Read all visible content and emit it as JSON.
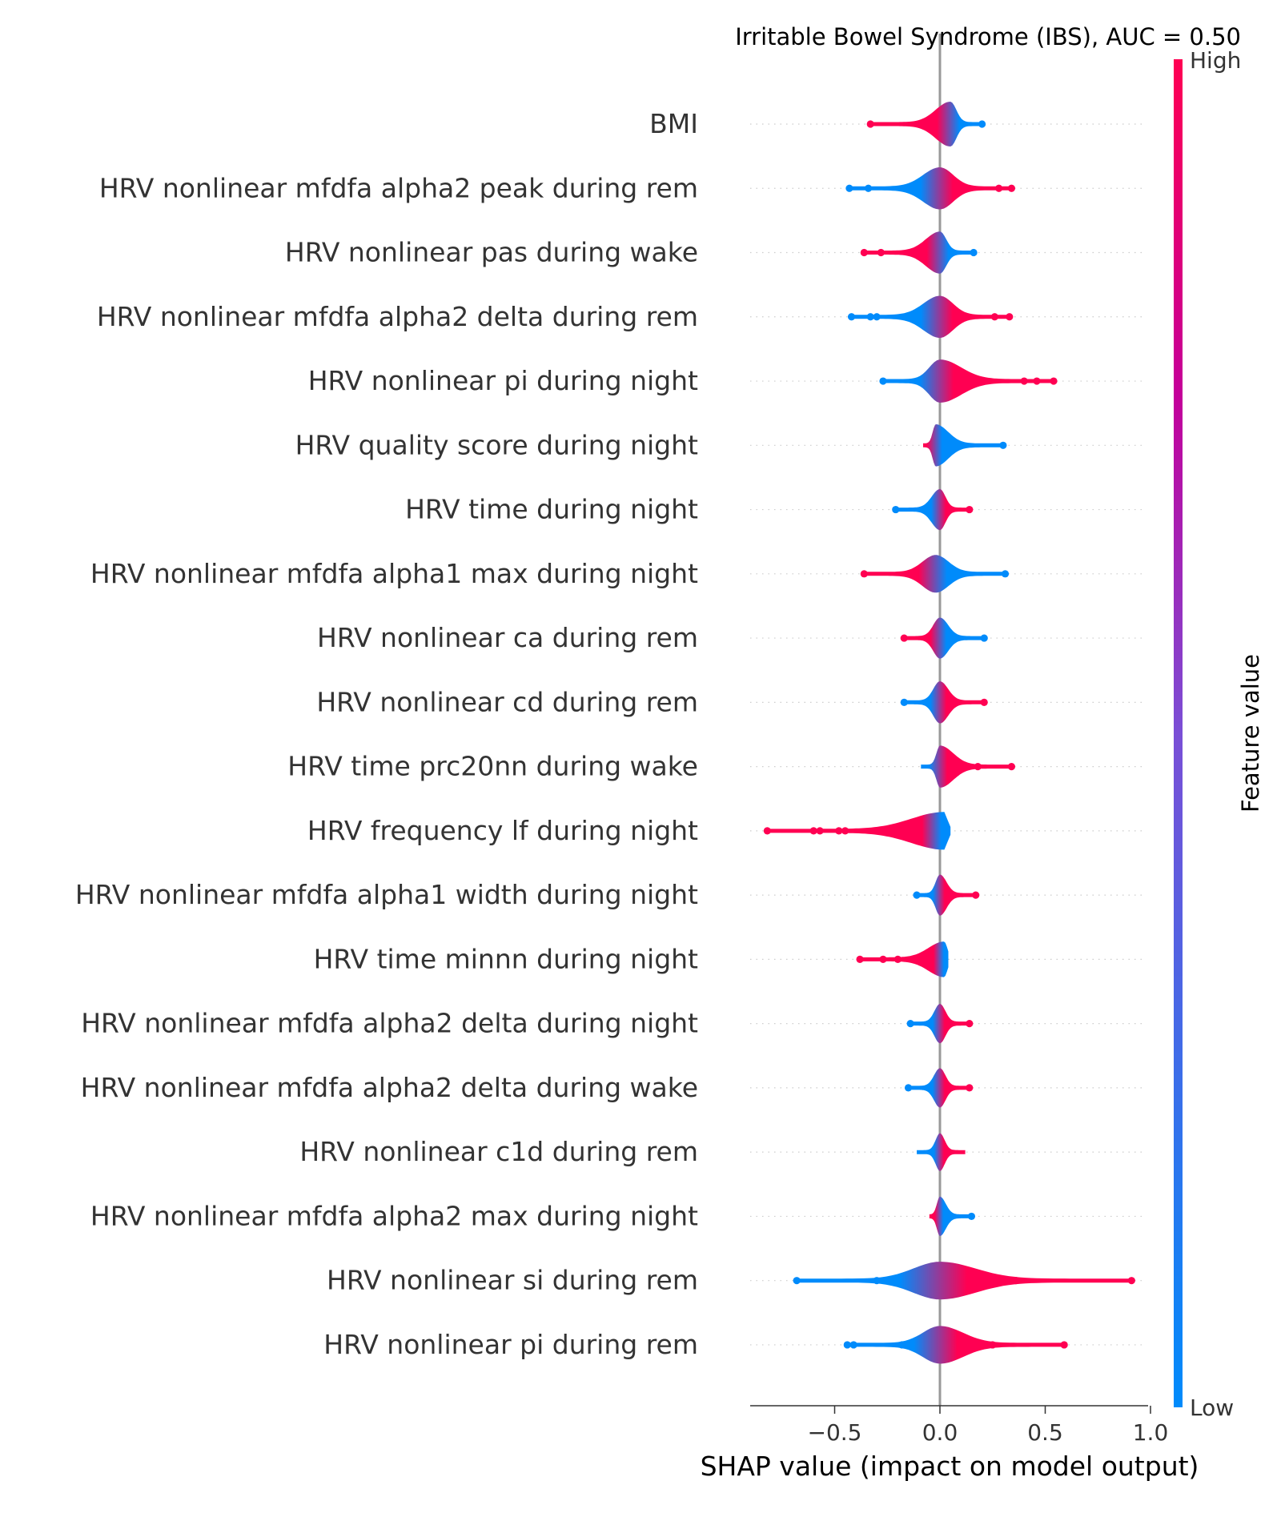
{
  "chart_data": {
    "type": "violin",
    "title": "Irritable Bowel Syndrome (IBS), AUC =  0.50",
    "xlabel": "SHAP value (impact on model output)",
    "xlim": [
      -0.9,
      1.0
    ],
    "xticks": [
      {
        "value": -0.5,
        "label": "−0.5"
      },
      {
        "value": 0.0,
        "label": "0.0"
      },
      {
        "value": 0.5,
        "label": "0.5"
      },
      {
        "value": 1.0,
        "label": "1.0"
      }
    ],
    "colorbar": {
      "label": "Feature value",
      "high_label": "High",
      "low_label": "Low",
      "high_color": "#ff0052",
      "low_color": "#008bfb"
    },
    "features": [
      {
        "name": "BMI",
        "min": -0.33,
        "max": 0.2,
        "peak": 0.05,
        "hw": 0.75,
        "high_side": "left",
        "outliers": [
          {
            "x": -0.33,
            "c": "high"
          },
          {
            "x": 0.2,
            "c": "low"
          }
        ]
      },
      {
        "name": "HRV nonlinear mfdfa alpha2 peak during rem",
        "min": -0.43,
        "max": 0.34,
        "peak": 0.0,
        "hw": 0.7,
        "high_side": "right",
        "outliers": [
          {
            "x": -0.43,
            "c": "low"
          },
          {
            "x": -0.34,
            "c": "low"
          },
          {
            "x": 0.28,
            "c": "high"
          },
          {
            "x": 0.34,
            "c": "high"
          }
        ]
      },
      {
        "name": "HRV nonlinear pas during wake",
        "min": -0.36,
        "max": 0.16,
        "peak": 0.0,
        "hw": 0.7,
        "high_side": "left",
        "outliers": [
          {
            "x": -0.36,
            "c": "high"
          },
          {
            "x": -0.28,
            "c": "high"
          },
          {
            "x": 0.16,
            "c": "low"
          }
        ]
      },
      {
        "name": "HRV nonlinear mfdfa alpha2 delta during rem",
        "min": -0.42,
        "max": 0.33,
        "peak": 0.0,
        "hw": 0.7,
        "high_side": "right",
        "outliers": [
          {
            "x": -0.42,
            "c": "low"
          },
          {
            "x": -0.33,
            "c": "low"
          },
          {
            "x": -0.3,
            "c": "low"
          },
          {
            "x": 0.26,
            "c": "high"
          },
          {
            "x": 0.33,
            "c": "high"
          }
        ]
      },
      {
        "name": "HRV nonlinear pi during night",
        "min": -0.27,
        "max": 0.54,
        "peak": 0.0,
        "hw": 0.72,
        "high_side": "right",
        "outliers": [
          {
            "x": -0.27,
            "c": "low"
          },
          {
            "x": 0.4,
            "c": "high"
          },
          {
            "x": 0.46,
            "c": "high"
          },
          {
            "x": 0.54,
            "c": "high"
          }
        ]
      },
      {
        "name": "HRV quality score during night",
        "min": -0.08,
        "max": 0.3,
        "peak": -0.02,
        "hw": 0.7,
        "high_side": "left",
        "outliers": [
          {
            "x": 0.3,
            "c": "low"
          }
        ]
      },
      {
        "name": "HRV time during night",
        "min": -0.21,
        "max": 0.14,
        "peak": 0.0,
        "hw": 0.68,
        "high_side": "right",
        "outliers": [
          {
            "x": -0.21,
            "c": "low"
          },
          {
            "x": 0.14,
            "c": "high"
          }
        ]
      },
      {
        "name": "HRV nonlinear mfdfa alpha1 max during night",
        "min": -0.36,
        "max": 0.31,
        "peak": -0.02,
        "hw": 0.62,
        "high_side": "left",
        "outliers": [
          {
            "x": -0.36,
            "c": "high"
          },
          {
            "x": 0.31,
            "c": "low"
          }
        ]
      },
      {
        "name": "HRV nonlinear ca during rem",
        "min": -0.17,
        "max": 0.21,
        "peak": 0.0,
        "hw": 0.68,
        "high_side": "left",
        "outliers": [
          {
            "x": -0.17,
            "c": "high"
          },
          {
            "x": 0.21,
            "c": "low"
          }
        ]
      },
      {
        "name": "HRV nonlinear cd during rem",
        "min": -0.17,
        "max": 0.21,
        "peak": 0.0,
        "hw": 0.7,
        "high_side": "right",
        "outliers": [
          {
            "x": -0.17,
            "c": "low"
          },
          {
            "x": 0.21,
            "c": "high"
          }
        ]
      },
      {
        "name": "HRV time prc20nn during wake",
        "min": -0.09,
        "max": 0.34,
        "peak": 0.0,
        "hw": 0.7,
        "high_side": "right",
        "outliers": [
          {
            "x": 0.18,
            "c": "high"
          },
          {
            "x": 0.34,
            "c": "high"
          }
        ]
      },
      {
        "name": "HRV frequency lf during night",
        "min": -0.82,
        "max": 0.05,
        "peak": 0.02,
        "hw": 0.62,
        "high_side": "left",
        "outliers": [
          {
            "x": -0.82,
            "c": "high"
          },
          {
            "x": -0.6,
            "c": "high"
          },
          {
            "x": -0.57,
            "c": "high"
          },
          {
            "x": -0.48,
            "c": "high"
          },
          {
            "x": -0.45,
            "c": "high"
          }
        ]
      },
      {
        "name": "HRV nonlinear mfdfa alpha1 width during night",
        "min": -0.11,
        "max": 0.17,
        "peak": 0.0,
        "hw": 0.68,
        "high_side": "right",
        "outliers": [
          {
            "x": -0.11,
            "c": "low"
          },
          {
            "x": 0.17,
            "c": "high"
          }
        ]
      },
      {
        "name": "HRV time minnn during night",
        "min": -0.38,
        "max": 0.04,
        "peak": 0.02,
        "hw": 0.58,
        "high_side": "left",
        "outliers": [
          {
            "x": -0.38,
            "c": "high"
          },
          {
            "x": -0.27,
            "c": "high"
          },
          {
            "x": -0.2,
            "c": "high"
          }
        ]
      },
      {
        "name": "HRV nonlinear mfdfa alpha2 delta during night",
        "min": -0.14,
        "max": 0.14,
        "peak": 0.0,
        "hw": 0.65,
        "high_side": "right",
        "outliers": [
          {
            "x": -0.14,
            "c": "low"
          },
          {
            "x": 0.14,
            "c": "high"
          }
        ]
      },
      {
        "name": "HRV nonlinear mfdfa alpha2 delta during wake",
        "min": -0.15,
        "max": 0.14,
        "peak": 0.0,
        "hw": 0.65,
        "high_side": "right",
        "outliers": [
          {
            "x": -0.15,
            "c": "low"
          },
          {
            "x": 0.14,
            "c": "high"
          }
        ]
      },
      {
        "name": "HRV nonlinear c1d during rem",
        "min": -0.11,
        "max": 0.12,
        "peak": 0.0,
        "hw": 0.62,
        "high_side": "right",
        "outliers": []
      },
      {
        "name": "HRV nonlinear mfdfa alpha2 max during night",
        "min": -0.05,
        "max": 0.15,
        "peak": 0.0,
        "hw": 0.65,
        "high_side": "left",
        "outliers": [
          {
            "x": 0.15,
            "c": "low"
          }
        ]
      },
      {
        "name": "HRV nonlinear si during rem",
        "min": -0.68,
        "max": 0.91,
        "peak": 0.0,
        "hw": 0.62,
        "high_side": "right",
        "outliers": [
          {
            "x": -0.68,
            "c": "low"
          },
          {
            "x": -0.3,
            "c": "low"
          },
          {
            "x": -0.2,
            "c": "low"
          },
          {
            "x": 0.2,
            "c": "high"
          },
          {
            "x": 0.27,
            "c": "high"
          },
          {
            "x": 0.36,
            "c": "high"
          },
          {
            "x": 0.91,
            "c": "high"
          }
        ]
      },
      {
        "name": "HRV nonlinear pi during rem",
        "min": -0.44,
        "max": 0.59,
        "peak": 0.0,
        "hw": 0.62,
        "high_side": "right",
        "outliers": [
          {
            "x": -0.44,
            "c": "low"
          },
          {
            "x": -0.41,
            "c": "low"
          },
          {
            "x": -0.18,
            "c": "low"
          },
          {
            "x": 0.25,
            "c": "high"
          },
          {
            "x": 0.59,
            "c": "high"
          }
        ]
      }
    ]
  }
}
